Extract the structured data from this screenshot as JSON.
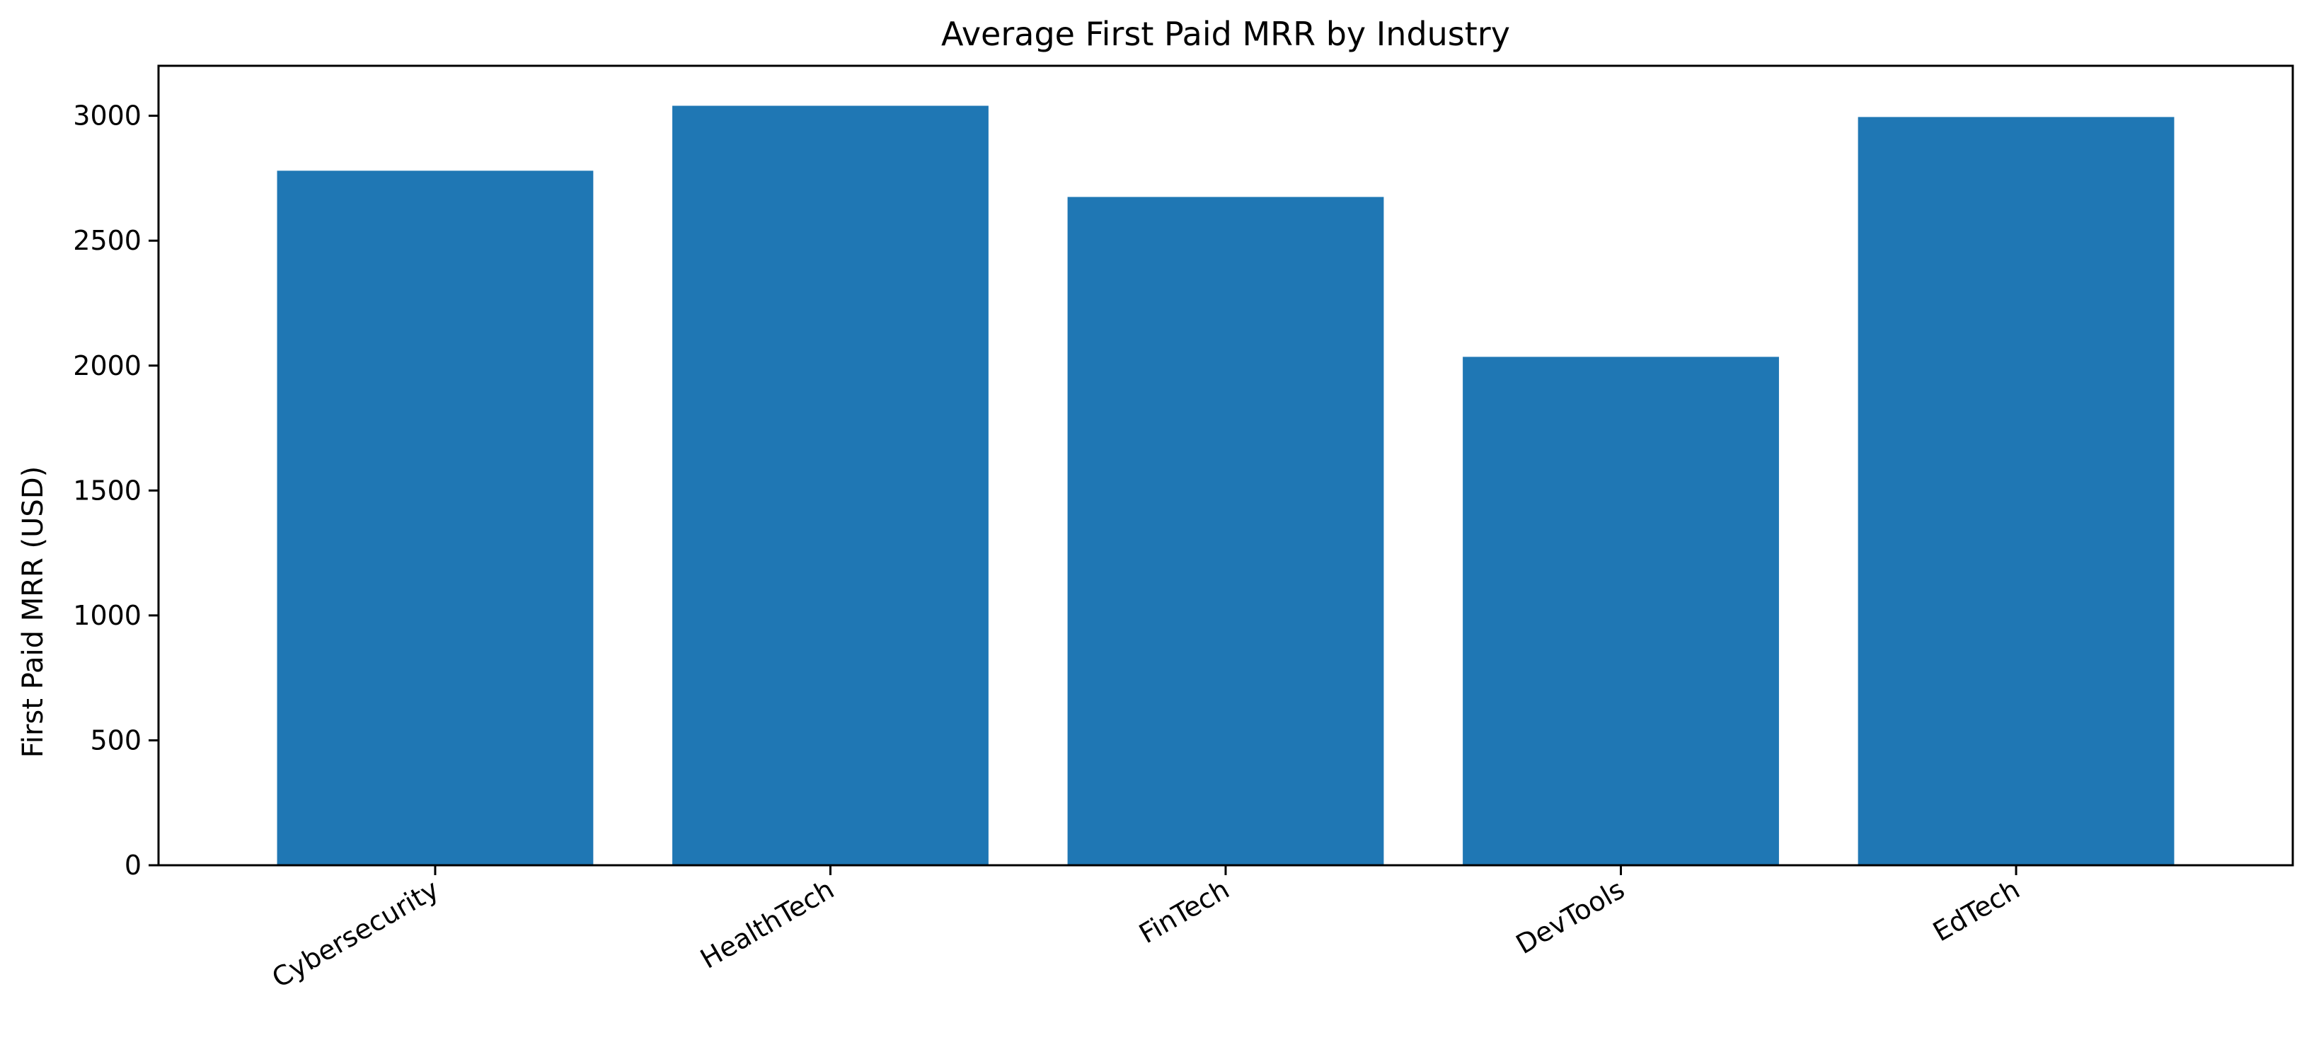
{
  "chart_data": {
    "type": "bar",
    "title": "Average First Paid MRR by Industry",
    "xlabel": "",
    "ylabel": "First Paid MRR (USD)",
    "categories": [
      "Cybersecurity",
      "HealthTech",
      "FinTech",
      "DevTools",
      "EdTech"
    ],
    "values": [
      2780,
      3040,
      2675,
      2035,
      2995
    ],
    "ylim": [
      0,
      3200
    ],
    "yticks": [
      0,
      500,
      1000,
      1500,
      2000,
      2500,
      3000
    ],
    "grid": false,
    "legend": false,
    "bar_color": "#1f77b4"
  }
}
